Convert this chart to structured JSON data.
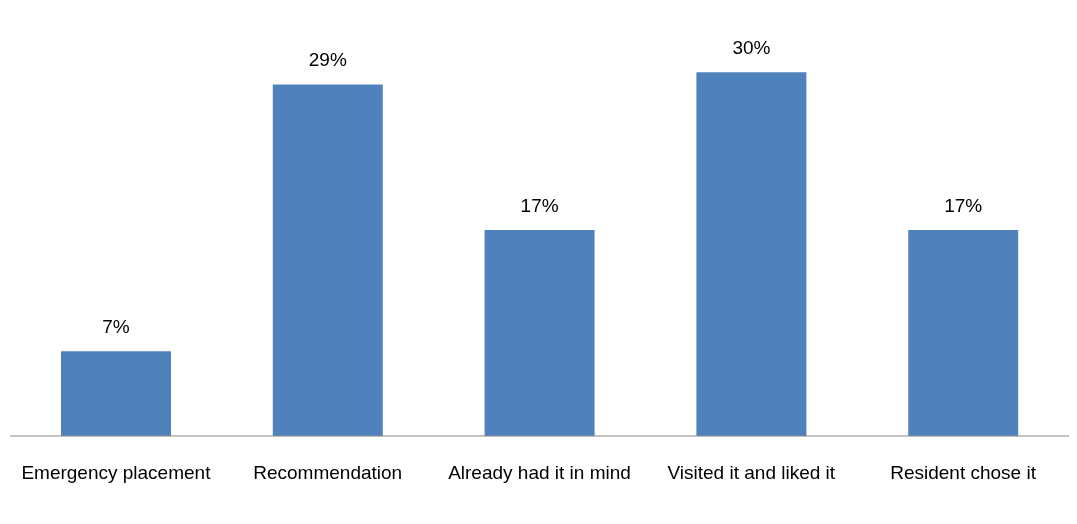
{
  "chart_data": {
    "type": "bar",
    "categories": [
      "Emergency placement",
      "Recommendation",
      "Already had it in mind",
      "Visited it and liked it",
      "Resident chose it"
    ],
    "values": [
      7,
      29,
      17,
      30,
      17
    ],
    "color": "#4f81bd",
    "value_labels": [
      "7%",
      "29%",
      "17%",
      "30%",
      "17%"
    ],
    "grid": false,
    "legend": false
  }
}
